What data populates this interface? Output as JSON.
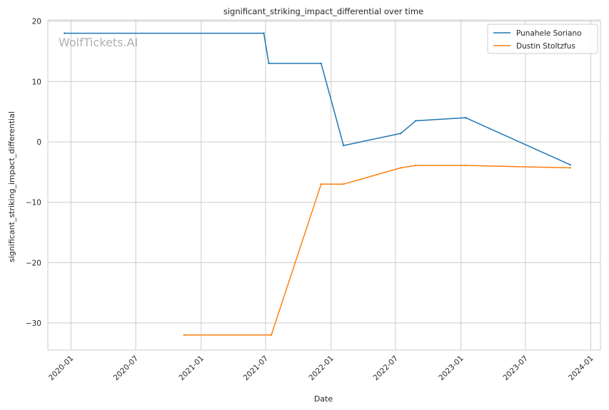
{
  "watermark": "WolfTickets.AI",
  "chart_data": {
    "type": "line",
    "title": "significant_striking_impact_differential over time",
    "xlabel": "Date",
    "ylabel": "significant_striking_impact_differential",
    "x_ticks": [
      "2020-01",
      "2020-07",
      "2021-01",
      "2021-07",
      "2022-01",
      "2022-07",
      "2023-01",
      "2023-07",
      "2024-01"
    ],
    "y_ticks": [
      20,
      10,
      0,
      -10,
      -20,
      -30
    ],
    "y_tick_labels": [
      "20",
      "10",
      "0",
      "−10",
      "−20",
      "−30"
    ],
    "xlim": [
      "2019-10-28",
      "2024-01-28"
    ],
    "ylim": [
      -34.5,
      20.2
    ],
    "grid": true,
    "legend_position": "top-right",
    "series": [
      {
        "name": "Punahele Soriano",
        "color": "#1f77b4",
        "points": [
          {
            "x": "2019-12-14",
            "y": 18.0
          },
          {
            "x": "2021-06-26",
            "y": 18.0
          },
          {
            "x": "2021-07-10",
            "y": 13.0
          },
          {
            "x": "2021-12-04",
            "y": 13.0
          },
          {
            "x": "2022-02-05",
            "y": -0.6
          },
          {
            "x": "2022-07-16",
            "y": 1.4
          },
          {
            "x": "2022-08-27",
            "y": 3.5
          },
          {
            "x": "2023-01-14",
            "y": 4.0
          },
          {
            "x": "2023-11-04",
            "y": -3.8
          }
        ]
      },
      {
        "name": "Dustin Stoltzfus",
        "color": "#ff7f0e",
        "points": [
          {
            "x": "2020-11-14",
            "y": -32.0
          },
          {
            "x": "2021-07-17",
            "y": -32.0
          },
          {
            "x": "2021-12-04",
            "y": -7.0
          },
          {
            "x": "2022-02-05",
            "y": -7.0
          },
          {
            "x": "2022-07-16",
            "y": -4.3
          },
          {
            "x": "2022-08-27",
            "y": -3.9
          },
          {
            "x": "2023-01-14",
            "y": -3.9
          },
          {
            "x": "2023-11-04",
            "y": -4.3
          }
        ]
      }
    ]
  }
}
